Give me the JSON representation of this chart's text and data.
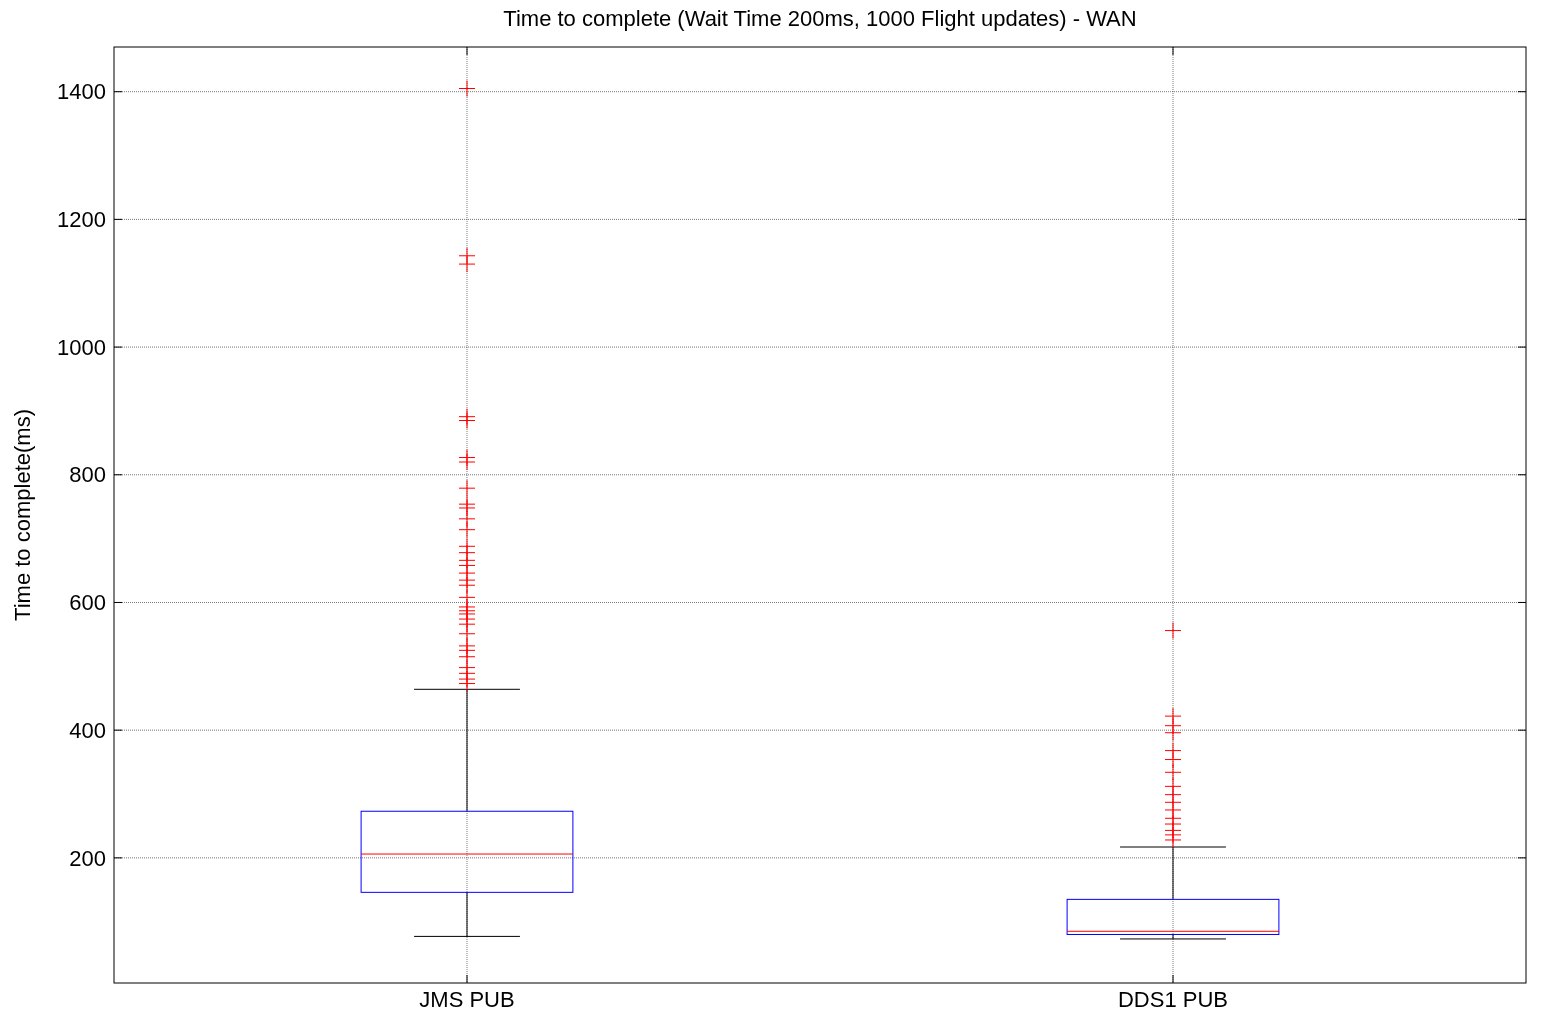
{
  "chart_data": {
    "type": "box",
    "title": "Time to complete (Wait Time 200ms, 1000 Flight updates) - WAN",
    "ylabel": "Time to complete(ms)",
    "categories": [
      "JMS PUB",
      "DDS1 PUB"
    ],
    "series": [
      {
        "color": "#0000ff",
        "boxes": [
          {
            "low": 77,
            "q1": 146,
            "median": 206,
            "q3": 273,
            "high": 464,
            "outliers": [
              1405,
              1143,
              1130,
              891,
              885,
              827,
              820,
              779,
              754,
              748,
              731,
              714,
              688,
              678,
              666,
              658,
              646,
              635,
              627,
              608,
              593,
              587,
              582,
              574,
              566,
              551,
              532,
              525,
              515,
              498,
              489,
              480,
              473
            ]
          },
          {
            "low": 73,
            "q1": 80,
            "median": 85,
            "q3": 135,
            "high": 217,
            "outliers": [
              556,
              422,
              407,
              396,
              368,
              354,
              334,
              312,
              299,
              287,
              275,
              262,
              253,
              243,
              236,
              228
            ]
          }
        ]
      }
    ],
    "ylim": [
      4,
      1470
    ],
    "yticks": [
      200,
      400,
      600,
      800,
      1000,
      1200,
      1400
    ],
    "grid": true,
    "marker": "cross"
  }
}
